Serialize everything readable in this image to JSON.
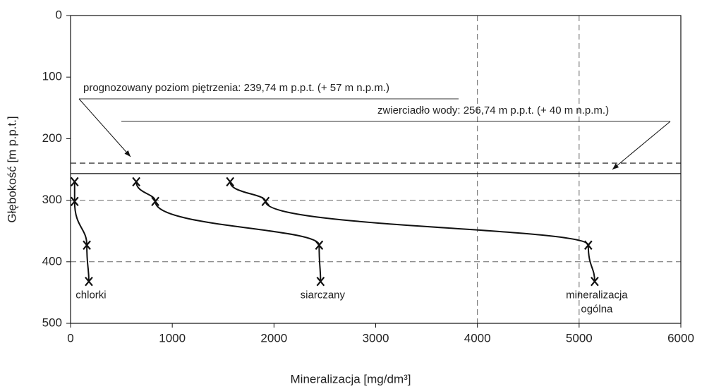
{
  "chart_data": {
    "type": "line",
    "x_label": "Mineralizacja [mg/dm³]",
    "y_label": "Głębokość [m p.p.t.]",
    "xlim": [
      0,
      6000
    ],
    "xticks": [
      0,
      1000,
      2000,
      3000,
      4000,
      5000,
      6000
    ],
    "ylim": [
      0,
      500
    ],
    "yticks": [
      0,
      100,
      200,
      300,
      400,
      500
    ],
    "y_inverted": true,
    "x_grid": [
      4000,
      5000
    ],
    "y_grid": [
      300,
      400
    ],
    "color": "#111111",
    "series": [
      {
        "label": [
          "chlorki"
        ],
        "x": [
          40,
          40,
          160,
          180
        ],
        "values": [
          270,
          302,
          373,
          432
        ]
      },
      {
        "label": [
          "siarczany"
        ],
        "x": [
          646,
          833,
          2444,
          2458
        ],
        "values": [
          270,
          302,
          373,
          432
        ]
      },
      {
        "label": [
          "mineralizacja",
          "ogólna"
        ],
        "x": [
          1569,
          1917,
          5090,
          5153
        ],
        "values": [
          270,
          302,
          373,
          432
        ]
      }
    ],
    "reference_lines": [
      {
        "text": "prognozowany poziom piętrzenia: 239,74 m  p.p.t. (+ 57 m n.p.m.)",
        "value": 239.74,
        "style": "dashed"
      },
      {
        "text": "zwierciadło wody: 256,74 m p.p.t. (+ 40 m n.p.m.)",
        "value": 256.74,
        "style": "solid"
      }
    ]
  }
}
